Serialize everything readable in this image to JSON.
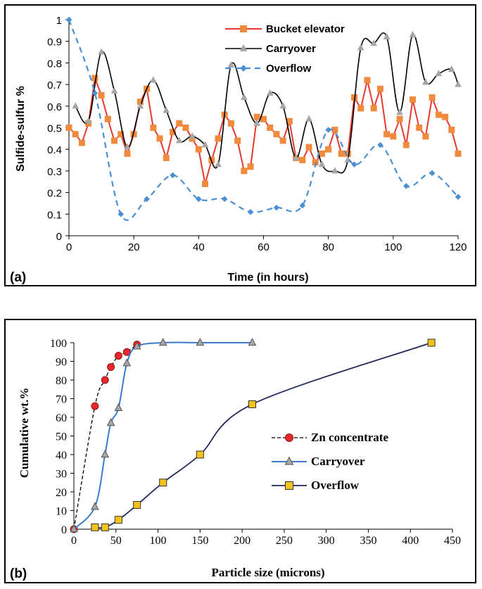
{
  "chart_data": [
    {
      "type": "line",
      "panel_label": "(a)",
      "xlabel": "Time (in hours)",
      "ylabel": "Sulfide-sulfur %",
      "xlim": [
        0,
        120
      ],
      "ylim": [
        0,
        1
      ],
      "xticks": [
        0,
        20,
        40,
        60,
        80,
        100,
        120
      ],
      "yticks": [
        0,
        0.1,
        0.2,
        0.3,
        0.4,
        0.5,
        0.6,
        0.7,
        0.8,
        0.9,
        1
      ],
      "grid": false,
      "legend_position": "top-right",
      "series": [
        {
          "name": "Bucket elevator",
          "color": "#e8392b",
          "marker": "square",
          "marker_color": "#f08a3c",
          "style": "solid-straight",
          "x": [
            0,
            2,
            4,
            6,
            8,
            10,
            12,
            14,
            16,
            18,
            20,
            22,
            24,
            26,
            28,
            30,
            32,
            34,
            36,
            38,
            40,
            42,
            44,
            46,
            48,
            50,
            52,
            54,
            56,
            58,
            60,
            62,
            64,
            66,
            68,
            70,
            72,
            74,
            76,
            78,
            80,
            82,
            84,
            86,
            88,
            90,
            92,
            94,
            96,
            98,
            100,
            102,
            104,
            106,
            108,
            110,
            112,
            114,
            116,
            118,
            120
          ],
          "y": [
            0.5,
            0.47,
            0.43,
            0.52,
            0.73,
            0.65,
            0.54,
            0.44,
            0.47,
            0.38,
            0.47,
            0.62,
            0.68,
            0.5,
            0.45,
            0.36,
            0.48,
            0.52,
            0.5,
            0.45,
            0.4,
            0.24,
            0.35,
            0.45,
            0.56,
            0.52,
            0.44,
            0.3,
            0.32,
            0.55,
            0.54,
            0.5,
            0.47,
            0.44,
            0.53,
            0.36,
            0.35,
            0.41,
            0.34,
            0.38,
            0.4,
            0.49,
            0.38,
            0.38,
            0.64,
            0.59,
            0.72,
            0.59,
            0.68,
            0.47,
            0.46,
            0.54,
            0.42,
            0.63,
            0.5,
            0.46,
            0.64,
            0.56,
            0.55,
            0.49,
            0.38
          ]
        },
        {
          "name": "Carryover",
          "color": "#000000",
          "marker": "triangle",
          "marker_color": "#a6a6a6",
          "style": "solid-smooth",
          "x": [
            2,
            6,
            10,
            14,
            18,
            22,
            26,
            30,
            34,
            38,
            42,
            46,
            50,
            54,
            58,
            62,
            66,
            70,
            74,
            78,
            82,
            86,
            90,
            94,
            98,
            102,
            106,
            110,
            114,
            118,
            120
          ],
          "y": [
            0.6,
            0.53,
            0.85,
            0.67,
            0.41,
            0.6,
            0.72,
            0.58,
            0.44,
            0.46,
            0.42,
            0.33,
            0.79,
            0.64,
            0.52,
            0.66,
            0.6,
            0.36,
            0.54,
            0.33,
            0.3,
            0.35,
            0.87,
            0.89,
            0.92,
            0.57,
            0.93,
            0.71,
            0.75,
            0.77,
            0.7
          ]
        },
        {
          "name": "Overflow",
          "color": "#4a8fd4",
          "marker": "diamond",
          "marker_color": "#4a8fd4",
          "style": "dashed-smooth",
          "x": [
            0,
            8,
            16,
            24,
            32,
            40,
            48,
            56,
            64,
            72,
            80,
            88,
            96,
            104,
            112,
            120
          ],
          "y": [
            1.0,
            0.66,
            0.1,
            0.17,
            0.28,
            0.17,
            0.17,
            0.11,
            0.13,
            0.14,
            0.49,
            0.33,
            0.42,
            0.23,
            0.29,
            0.18
          ]
        }
      ]
    },
    {
      "type": "line",
      "panel_label": "(b)",
      "xlabel": "Particle size (microns)",
      "ylabel": "Cumulative wt.%",
      "xlim": [
        0,
        450
      ],
      "ylim": [
        0,
        100
      ],
      "xticks": [
        0,
        50,
        100,
        150,
        200,
        250,
        300,
        350,
        400,
        450
      ],
      "yticks": [
        0,
        10,
        20,
        30,
        40,
        50,
        60,
        70,
        80,
        90,
        100
      ],
      "grid": false,
      "legend_position": "bottom-right",
      "series": [
        {
          "name": "Zn concentrate",
          "color": "#000000",
          "marker": "circle",
          "marker_color": "#e8262b",
          "style": "dashed-smooth",
          "x": [
            0,
            25,
            37,
            44,
            53,
            63,
            75
          ],
          "y": [
            0,
            66,
            80,
            87,
            93,
            95,
            99
          ]
        },
        {
          "name": "Carryover",
          "color": "#3a7ad0",
          "marker": "triangle",
          "marker_color": "#a6a6a6",
          "style": "solid-smooth",
          "x": [
            0,
            25,
            37,
            44,
            53,
            63,
            75,
            106,
            150,
            212
          ],
          "y": [
            0,
            12,
            40,
            57,
            65,
            89,
            98,
            100,
            100,
            100
          ]
        },
        {
          "name": "Overflow",
          "color": "#1f2a5c",
          "marker": "square",
          "marker_color": "#f5c21b",
          "style": "solid-smooth",
          "x": [
            25,
            37,
            53,
            75,
            106,
            150,
            212,
            425
          ],
          "y": [
            1,
            1,
            5,
            13,
            25,
            40,
            67,
            100
          ]
        }
      ]
    }
  ]
}
